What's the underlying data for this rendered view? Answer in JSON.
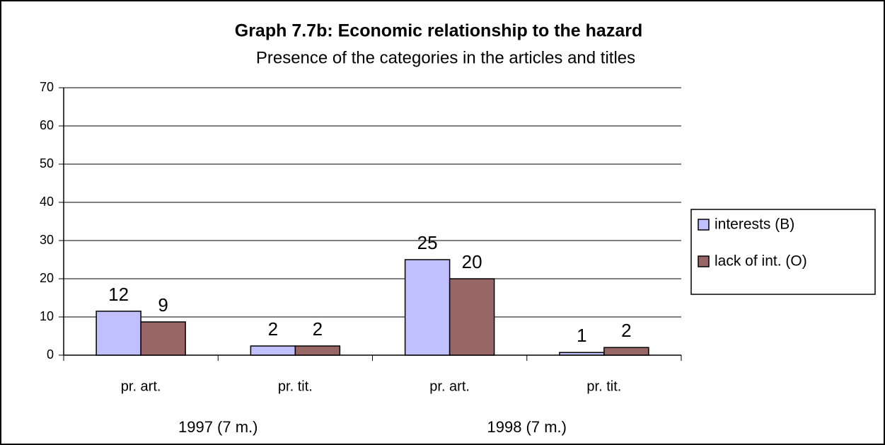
{
  "chart_data": {
    "type": "bar",
    "title": "Graph 7.7b: Economic relationship to the hazard",
    "subtitle": "Presence of the categories in the articles and titles",
    "categories": [
      "pr. art.",
      "pr. tit.",
      "pr. art.",
      "pr. tit."
    ],
    "category_groups": [
      "1997 (7 m.)",
      "1998 (7 m.)"
    ],
    "series": [
      {
        "name": "interests (B)",
        "color": "#c0c0ff",
        "values": [
          11.5,
          2.4,
          25,
          0.7
        ],
        "value_labels": [
          "12",
          "2",
          "25",
          "1"
        ]
      },
      {
        "name": "lack of int. (O)",
        "color": "#996666",
        "values": [
          8.7,
          2.4,
          20,
          2
        ],
        "value_labels": [
          "9",
          "2",
          "20",
          "2"
        ]
      }
    ],
    "ylim": [
      0,
      70
    ],
    "yticks": [
      0,
      10,
      20,
      30,
      40,
      50,
      60,
      70
    ],
    "grid": true,
    "legend": "right"
  }
}
